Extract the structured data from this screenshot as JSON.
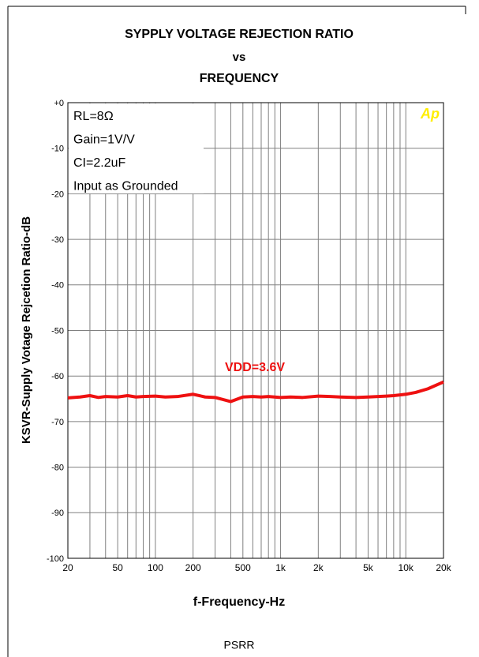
{
  "chart_data": {
    "type": "line",
    "title": [
      "SYPPLY VOLTAGE REJECTION RATIO",
      "vs",
      "FREQUENCY"
    ],
    "xlabel": "f-Frequency-Hz",
    "ylabel": "KSVR-Supply Votage Rejcetion Ratio-dB",
    "annotations": [
      "RL=8Ω",
      "Gain=1V/V",
      "CI=2.2uF",
      "Input as Grounded"
    ],
    "logo": "Ap",
    "caption": "PSRR",
    "x": [
      20,
      25,
      30,
      35,
      40,
      50,
      60,
      70,
      80,
      100,
      120,
      150,
      200,
      250,
      300,
      400,
      500,
      600,
      700,
      800,
      1000,
      1200,
      1500,
      2000,
      2500,
      3000,
      4000,
      5000,
      6000,
      7000,
      8000,
      10000,
      12000,
      15000,
      20000
    ],
    "series": [
      {
        "name": "VDD=3.6V",
        "color": "#ee1111",
        "values": [
          -64.8,
          -64.6,
          -64.3,
          -64.7,
          -64.5,
          -64.6,
          -64.3,
          -64.6,
          -64.5,
          -64.4,
          -64.6,
          -64.5,
          -64.0,
          -64.6,
          -64.7,
          -65.6,
          -64.6,
          -64.5,
          -64.6,
          -64.5,
          -64.7,
          -64.6,
          -64.7,
          -64.4,
          -64.5,
          -64.6,
          -64.7,
          -64.6,
          -64.5,
          -64.4,
          -64.3,
          -64.0,
          -63.6,
          -62.8,
          -61.3
        ]
      }
    ],
    "xlim": [
      20,
      20000
    ],
    "ylim": [
      -100,
      0
    ],
    "log_x": true,
    "grid": true,
    "xgrid": [
      20,
      30,
      40,
      50,
      60,
      70,
      80,
      90,
      100,
      200,
      300,
      400,
      500,
      600,
      700,
      800,
      900,
      1000,
      2000,
      3000,
      4000,
      5000,
      6000,
      7000,
      8000,
      9000,
      10000,
      20000
    ],
    "xticks": [
      20,
      50,
      100,
      200,
      500,
      {
        "value": 1000,
        "label": "1k"
      },
      {
        "value": 2000,
        "label": "2k"
      },
      {
        "value": 5000,
        "label": "5k"
      },
      {
        "value": 10000,
        "label": "10k"
      },
      {
        "value": 20000,
        "label": "20k"
      }
    ],
    "yticks": [
      {
        "value": 0,
        "label": "+0"
      },
      -10,
      -20,
      -30,
      -40,
      -50,
      -60,
      -70,
      -80,
      -90,
      -100
    ]
  }
}
